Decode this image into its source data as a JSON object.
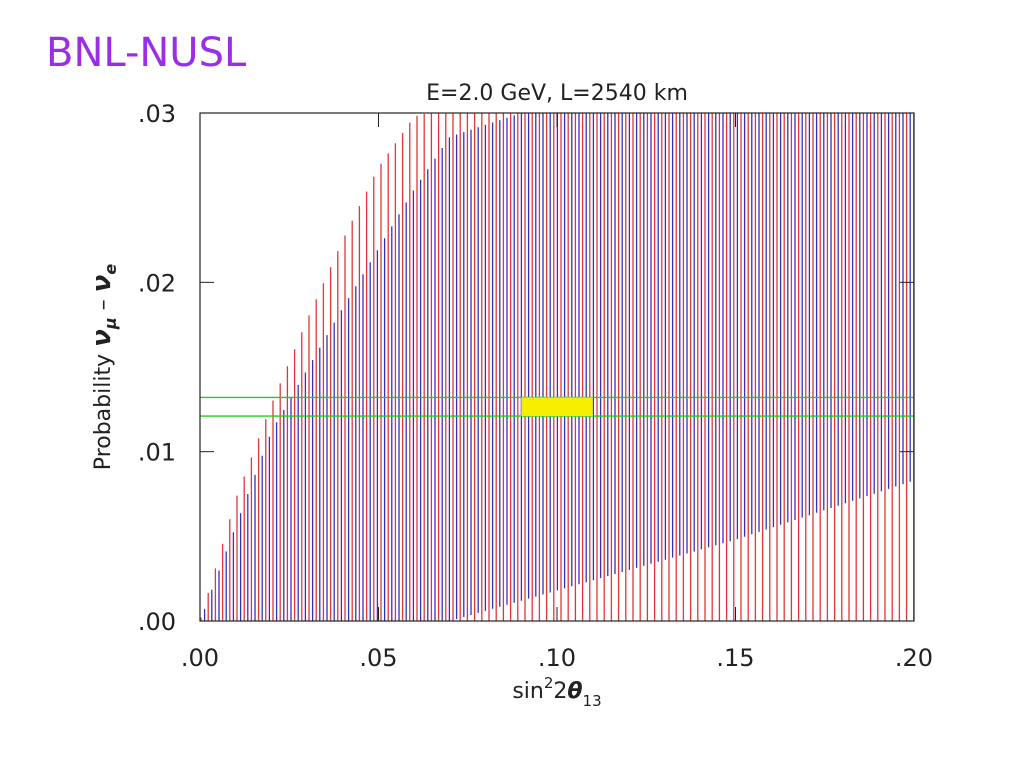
{
  "slide": {
    "title": "BNL-NUSL"
  },
  "colors": {
    "title": "#9a2de6",
    "series_red": "#e0373a",
    "series_blue": "#3333b8",
    "band_green": "#22cc22",
    "highlight_yellow": "#f5f000"
  },
  "chart_data": {
    "type": "area",
    "title": "E=2.0 GeV, L=2540 km",
    "xlabel": {
      "prefix": "sin",
      "sup": "2",
      "mid": "2",
      "theta": "θ",
      "sub": "13"
    },
    "ylabel": {
      "prefix": "Probability ",
      "nu": "ν",
      "mu": "μ",
      "dash": " – ",
      "nu2": "ν",
      "e": "e"
    },
    "xlim": [
      0.0,
      0.2
    ],
    "ylim": [
      0.0,
      0.03
    ],
    "x_ticks": [
      {
        "value": 0.0,
        "label": ".00"
      },
      {
        "value": 0.05,
        "label": ".05"
      },
      {
        "value": 0.1,
        "label": ".10"
      },
      {
        "value": 0.15,
        "label": ".15"
      },
      {
        "value": 0.2,
        "label": ".20"
      }
    ],
    "y_ticks": [
      {
        "value": 0.0,
        "label": ".00"
      },
      {
        "value": 0.01,
        "label": ".01"
      },
      {
        "value": 0.02,
        "label": ".02"
      },
      {
        "value": 0.03,
        "label": ".03"
      }
    ],
    "series": [
      {
        "color": "red",
        "x": [
          0.0,
          0.01,
          0.02,
          0.03,
          0.04,
          0.05,
          0.06,
          0.064,
          0.2
        ],
        "lower": [
          0.0,
          0.0,
          0.0,
          0.0,
          0.0,
          0.0,
          0.0,
          0.0,
          0.0
        ],
        "upper": [
          0.0,
          0.0072,
          0.0128,
          0.0178,
          0.0225,
          0.0268,
          0.0298,
          0.03,
          0.03
        ]
      },
      {
        "color": "blue",
        "x": [
          0.0,
          0.02,
          0.04,
          0.06,
          0.07,
          0.09,
          0.1,
          0.12,
          0.15,
          0.2
        ],
        "lower": [
          0.0,
          0.0,
          0.0,
          0.0,
          0.0,
          0.0012,
          0.0018,
          0.003,
          0.0048,
          0.0083
        ],
        "upper": [
          0.0,
          0.0112,
          0.0185,
          0.0255,
          0.0286,
          0.03,
          0.03,
          0.03,
          0.03,
          0.03
        ]
      }
    ],
    "band": {
      "y_low": 0.0121,
      "y_high": 0.0132
    },
    "highlight": {
      "x_low": 0.09,
      "x_high": 0.11,
      "y_low": 0.0121,
      "y_high": 0.0132
    }
  }
}
